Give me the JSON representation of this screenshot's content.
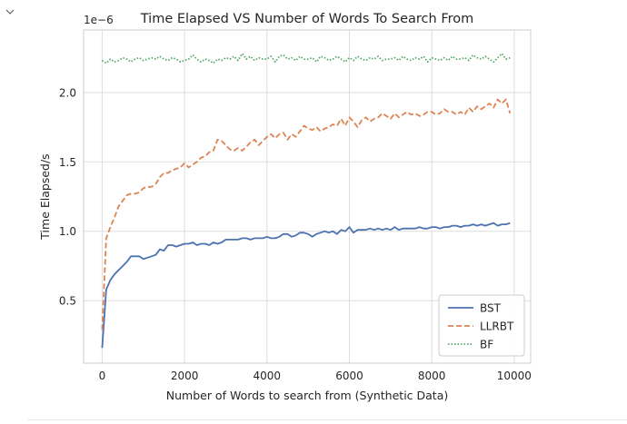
{
  "notebook": {
    "collapse_icon": "chevron-down-icon"
  },
  "chart_data": {
    "type": "line",
    "title": "Time Elapsed VS Number of Words To Search From",
    "xlabel": "Number of Words to search from (Synthetic Data)",
    "ylabel": "Time Elapsed/s",
    "offset_label": "1e−6",
    "xlim": [
      -450,
      10400
    ],
    "ylim": [
      0.05,
      2.45
    ],
    "xticks": [
      0,
      2000,
      4000,
      6000,
      8000,
      10000
    ],
    "xtick_labels": [
      "0",
      "2000",
      "4000",
      "6000",
      "8000",
      "10000"
    ],
    "yticks": [
      0.5,
      1.0,
      1.5,
      2.0
    ],
    "ytick_labels": [
      "0.5",
      "1.0",
      "1.5",
      "2.0"
    ],
    "grid": true,
    "legend_position": "lower-right",
    "x": [
      0,
      100,
      200,
      300,
      400,
      500,
      600,
      700,
      800,
      900,
      1000,
      1100,
      1200,
      1300,
      1400,
      1500,
      1600,
      1700,
      1800,
      1900,
      2000,
      2100,
      2200,
      2300,
      2400,
      2500,
      2600,
      2700,
      2800,
      2900,
      3000,
      3100,
      3200,
      3300,
      3400,
      3500,
      3600,
      3700,
      3800,
      3900,
      4000,
      4100,
      4200,
      4300,
      4400,
      4500,
      4600,
      4700,
      4800,
      4900,
      5000,
      5100,
      5200,
      5300,
      5400,
      5500,
      5600,
      5700,
      5800,
      5900,
      6000,
      6100,
      6200,
      6300,
      6400,
      6500,
      6600,
      6700,
      6800,
      6900,
      7000,
      7100,
      7200,
      7300,
      7400,
      7500,
      7600,
      7700,
      7800,
      7900,
      8000,
      8100,
      8200,
      8300,
      8400,
      8500,
      8600,
      8700,
      8800,
      8900,
      9000,
      9100,
      9200,
      9300,
      9400,
      9500,
      9600,
      9700,
      9800,
      9900
    ],
    "series": [
      {
        "name": "BST",
        "color": "#4c72b0",
        "dash": "solid",
        "values": [
          0.16,
          0.58,
          0.65,
          0.69,
          0.72,
          0.75,
          0.78,
          0.82,
          0.82,
          0.82,
          0.8,
          0.81,
          0.82,
          0.83,
          0.87,
          0.86,
          0.9,
          0.9,
          0.89,
          0.9,
          0.91,
          0.91,
          0.92,
          0.9,
          0.91,
          0.91,
          0.9,
          0.92,
          0.91,
          0.92,
          0.94,
          0.94,
          0.94,
          0.94,
          0.95,
          0.95,
          0.94,
          0.95,
          0.95,
          0.95,
          0.96,
          0.95,
          0.95,
          0.96,
          0.98,
          0.98,
          0.96,
          0.97,
          0.99,
          0.99,
          0.98,
          0.96,
          0.98,
          0.99,
          1.0,
          0.99,
          1.0,
          0.98,
          1.01,
          1.0,
          1.03,
          0.99,
          1.01,
          1.01,
          1.01,
          1.02,
          1.01,
          1.02,
          1.01,
          1.02,
          1.01,
          1.03,
          1.01,
          1.02,
          1.02,
          1.02,
          1.02,
          1.03,
          1.02,
          1.02,
          1.03,
          1.03,
          1.02,
          1.03,
          1.03,
          1.04,
          1.04,
          1.03,
          1.04,
          1.04,
          1.05,
          1.04,
          1.05,
          1.04,
          1.05,
          1.06,
          1.04,
          1.05,
          1.05,
          1.06
        ]
      },
      {
        "name": "LLRBT",
        "color": "#dd8452",
        "dash": "dashed",
        "values": [
          0.29,
          0.95,
          1.03,
          1.1,
          1.18,
          1.22,
          1.26,
          1.27,
          1.27,
          1.28,
          1.31,
          1.32,
          1.32,
          1.34,
          1.39,
          1.42,
          1.42,
          1.44,
          1.45,
          1.46,
          1.49,
          1.46,
          1.48,
          1.5,
          1.53,
          1.54,
          1.57,
          1.58,
          1.66,
          1.65,
          1.62,
          1.59,
          1.58,
          1.6,
          1.58,
          1.61,
          1.64,
          1.66,
          1.62,
          1.65,
          1.68,
          1.7,
          1.67,
          1.7,
          1.71,
          1.66,
          1.7,
          1.68,
          1.72,
          1.76,
          1.74,
          1.73,
          1.75,
          1.72,
          1.74,
          1.75,
          1.77,
          1.76,
          1.81,
          1.76,
          1.82,
          1.79,
          1.75,
          1.8,
          1.82,
          1.79,
          1.81,
          1.82,
          1.85,
          1.83,
          1.81,
          1.85,
          1.82,
          1.84,
          1.86,
          1.84,
          1.85,
          1.83,
          1.84,
          1.86,
          1.86,
          1.84,
          1.85,
          1.88,
          1.86,
          1.86,
          1.84,
          1.86,
          1.84,
          1.89,
          1.86,
          1.9,
          1.88,
          1.9,
          1.92,
          1.89,
          1.95,
          1.92,
          1.95,
          1.85
        ]
      },
      {
        "name": "BF",
        "color": "#55a868",
        "dash": "dotted",
        "values": [
          2.23,
          2.21,
          2.24,
          2.22,
          2.23,
          2.25,
          2.24,
          2.22,
          2.24,
          2.25,
          2.23,
          2.24,
          2.25,
          2.24,
          2.26,
          2.24,
          2.23,
          2.25,
          2.24,
          2.22,
          2.23,
          2.24,
          2.27,
          2.24,
          2.22,
          2.24,
          2.23,
          2.21,
          2.24,
          2.23,
          2.25,
          2.24,
          2.26,
          2.23,
          2.28,
          2.24,
          2.26,
          2.23,
          2.25,
          2.24,
          2.24,
          2.26,
          2.22,
          2.26,
          2.27,
          2.24,
          2.25,
          2.23,
          2.26,
          2.24,
          2.24,
          2.25,
          2.22,
          2.26,
          2.25,
          2.23,
          2.24,
          2.26,
          2.24,
          2.22,
          2.25,
          2.23,
          2.26,
          2.24,
          2.23,
          2.25,
          2.24,
          2.26,
          2.23,
          2.24,
          2.24,
          2.25,
          2.23,
          2.26,
          2.24,
          2.23,
          2.25,
          2.24,
          2.26,
          2.22,
          2.25,
          2.24,
          2.23,
          2.25,
          2.23,
          2.26,
          2.24,
          2.24,
          2.25,
          2.23,
          2.27,
          2.25,
          2.24,
          2.26,
          2.24,
          2.22,
          2.25,
          2.28,
          2.24,
          2.25
        ]
      }
    ]
  }
}
